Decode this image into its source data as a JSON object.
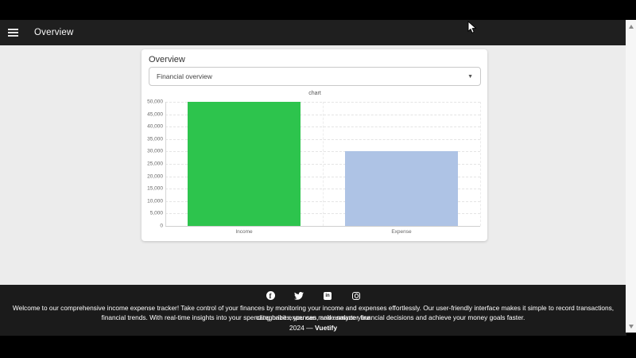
{
  "app_bar": {
    "title": "Overview"
  },
  "card": {
    "title": "Overview",
    "select_value": "Financial overview"
  },
  "chart_data": {
    "type": "bar",
    "title": "chart",
    "categories": [
      "Income",
      "Expense"
    ],
    "values": [
      50000,
      30000
    ],
    "bar_colors": [
      "#2dc44d",
      "#aec3e5"
    ],
    "ylim": [
      0,
      50000
    ],
    "ytick_step": 5000,
    "grid": true,
    "legend_position": "none",
    "xlabel": "",
    "ylabel": ""
  },
  "footer": {
    "social_icons": [
      "facebook",
      "twitter",
      "linkedin",
      "instagram"
    ],
    "linkedin_label": "in",
    "facebook_label": "f",
    "description_line1": "Welcome to our comprehensive income expense tracker! Take control of your finances by monitoring your income and expenses effortlessly. Our user-friendly interface makes it simple to record transactions, categorize expenses, and analyze your",
    "description_line2": "financial trends. With real-time insights into your spending habits, you can make smarter financial decisions and achieve your money goals faster.",
    "copyright_prefix": "2024 — ",
    "brand": "Vuetify"
  },
  "colors": {
    "app_bar_bg": "#1f1f1f",
    "page_bg": "#ececec",
    "footer_bg": "#1b1b1b",
    "income_bar": "#2dc44d",
    "expense_bar": "#aec3e5"
  }
}
